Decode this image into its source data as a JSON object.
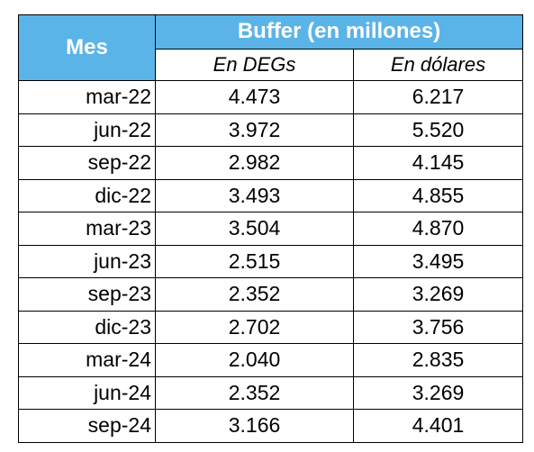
{
  "table": {
    "header": {
      "mes": "Mes",
      "group": "Buffer (en millones)",
      "sub_deg": "En DEGs",
      "sub_usd": "En dólares"
    },
    "rows": [
      {
        "mes": "mar-22",
        "deg": "4.473",
        "usd": "6.217"
      },
      {
        "mes": "jun-22",
        "deg": "3.972",
        "usd": "5.520"
      },
      {
        "mes": "sep-22",
        "deg": "2.982",
        "usd": "4.145"
      },
      {
        "mes": "dic-22",
        "deg": "3.493",
        "usd": "4.855"
      },
      {
        "mes": "mar-23",
        "deg": "3.504",
        "usd": "4.870"
      },
      {
        "mes": "jun-23",
        "deg": "2.515",
        "usd": "3.495"
      },
      {
        "mes": "sep-23",
        "deg": "2.352",
        "usd": "3.269"
      },
      {
        "mes": "dic-23",
        "deg": "2.702",
        "usd": "3.756"
      },
      {
        "mes": "mar-24",
        "deg": "2.040",
        "usd": "2.835"
      },
      {
        "mes": "jun-24",
        "deg": "2.352",
        "usd": "3.269"
      },
      {
        "mes": "sep-24",
        "deg": "3.166",
        "usd": "4.401"
      }
    ],
    "colors": {
      "header_bg": "#5bb4e8",
      "header_text": "#ffffff",
      "border": "#000000"
    }
  }
}
